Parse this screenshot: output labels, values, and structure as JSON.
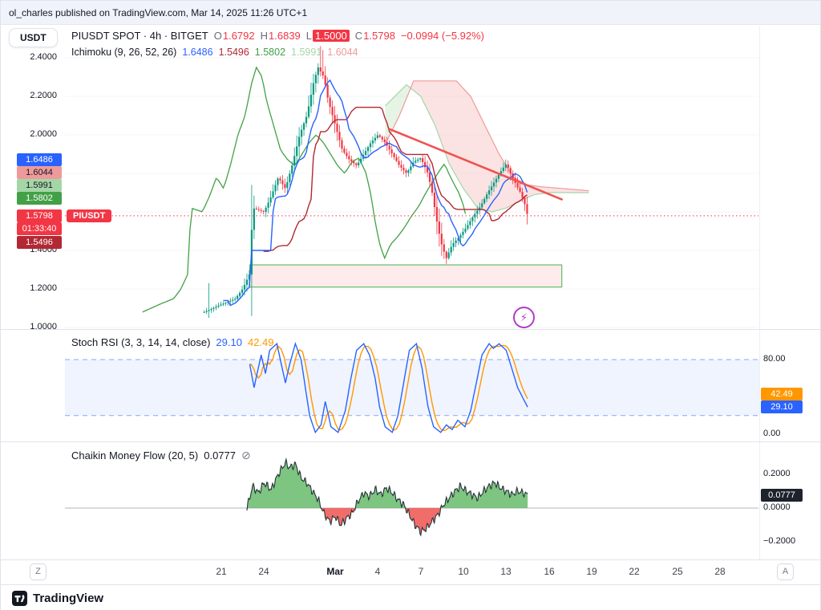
{
  "attribution": {
    "text": "ol_charles published on TradingView.com, Mar 14, 2025 11:26 UTC+1"
  },
  "toolbar": {
    "currency_label": "USDT"
  },
  "icons": {
    "boost": "⚡",
    "hide": "⊘"
  },
  "main_legend": {
    "title": "PIUSDT SPOT · 4h · BITGET",
    "o_label": "O",
    "o_value": "1.6792",
    "h_label": "H",
    "h_value": "1.6839",
    "l_label": "L",
    "l_value": "1.5000",
    "c_label": "C",
    "c_value": "1.5798",
    "change": "−0.0994 (−5.92%)",
    "ichimoku_label": "Ichimoku (9, 26, 52, 26)",
    "ichimoku_values": {
      "conversion": "1.6486",
      "base": "1.5496",
      "lagging": "1.5802",
      "lead1": "1.5991",
      "lead2": "1.6044"
    }
  },
  "price_axis": {
    "labels": [
      {
        "text": "2.4000"
      },
      {
        "text": "2.2000"
      },
      {
        "text": "2.0000"
      },
      {
        "text": "1.4000"
      },
      {
        "text": "1.2000"
      },
      {
        "text": "1.0000"
      }
    ],
    "badges": {
      "conversion": "1.6486",
      "lead2": "1.6044",
      "lead1": "1.5991",
      "lagging": "1.5802",
      "last_price": "1.5798",
      "symbol_tag": "PIUSDT",
      "countdown": "01:33:40",
      "base": "1.5496"
    }
  },
  "stoch_panel": {
    "legend_title": "Stoch RSI (3, 3, 14, 14, close)",
    "k_value": "29.10",
    "d_value": "42.49",
    "axis": {
      "upper": "80.00",
      "lower": "0.00",
      "d_badge": "42.49",
      "k_badge": "29.10"
    }
  },
  "cmf_panel": {
    "legend_title": "Chaikin Money Flow (20, 5)",
    "value": "0.0777",
    "axis": {
      "p02": "0.2000",
      "badge": "0.0777",
      "zero": "0.0000",
      "n02": "−0.2000"
    }
  },
  "time_axis": {
    "labels": [
      {
        "text": "21"
      },
      {
        "text": "24"
      },
      {
        "text": "Mar"
      },
      {
        "text": "4"
      },
      {
        "text": "7"
      },
      {
        "text": "10"
      },
      {
        "text": "13"
      },
      {
        "text": "16"
      },
      {
        "text": "19"
      },
      {
        "text": "22"
      },
      {
        "text": "25"
      },
      {
        "text": "28"
      }
    ],
    "left_button": "Z",
    "right_button": "A"
  },
  "footer": {
    "brand": "TradingView"
  },
  "colors": {
    "up": "#089981",
    "down": "#F23645",
    "conversion": "#2962FF",
    "base": "#B22833",
    "lagging": "#43A047",
    "lead1": "#A5D6A7",
    "lead2": "#EF9A9A",
    "stoch_k": "#2962FF",
    "stoch_d": "#FF9800",
    "cmf_pos": "#66BB6A",
    "cmf_neg": "#EF5350",
    "cmf_line": "#263238",
    "accent_red": "#F23645",
    "badge_dark": "#1E222D"
  },
  "chart_data": {
    "main": {
      "type": "candlestick",
      "symbol": "PIUSDT",
      "exchange": "BITGET",
      "interval": "4h",
      "title": "PIUSDT SPOT · 4h · BITGET",
      "ohlc_current": {
        "open": 1.6792,
        "high": 1.6839,
        "low": 1.5,
        "close": 1.5798,
        "change": -0.0994,
        "change_pct": -5.92
      },
      "ichimoku": {
        "params": [
          9,
          26,
          52,
          26
        ],
        "conversion": 1.6486,
        "base": 1.5496,
        "lagging": 1.5802,
        "lead1": 1.5991,
        "lead2": 1.6044
      },
      "ylim": [
        1.0,
        2.5
      ],
      "y_gridlines": [
        1.0,
        1.2,
        1.4,
        1.6,
        1.8,
        2.0,
        2.2,
        2.4
      ],
      "start_day": 19.8,
      "end_day": 42.5,
      "bars_per_day": 6,
      "close_path_anchors": [
        [
          19.8,
          1.08
        ],
        [
          20.4,
          1.1
        ],
        [
          21.0,
          1.12
        ],
        [
          22.0,
          1.15
        ],
        [
          22.5,
          1.2
        ],
        [
          23.0,
          1.28
        ],
        [
          23.2,
          1.62
        ],
        [
          24.0,
          1.6
        ],
        [
          24.5,
          1.68
        ],
        [
          25.0,
          1.78
        ],
        [
          25.5,
          1.72
        ],
        [
          26.0,
          1.85
        ],
        [
          26.5,
          2.0
        ],
        [
          27.0,
          2.1
        ],
        [
          27.5,
          2.28
        ],
        [
          27.8,
          2.35
        ],
        [
          28.2,
          2.3
        ],
        [
          28.5,
          2.18
        ],
        [
          29.0,
          2.05
        ],
        [
          29.5,
          1.92
        ],
        [
          30.0,
          1.87
        ],
        [
          30.5,
          1.84
        ],
        [
          31.0,
          1.9
        ],
        [
          31.5,
          1.96
        ],
        [
          32.0,
          2.0
        ],
        [
          32.5,
          1.96
        ],
        [
          33.0,
          1.9
        ],
        [
          33.5,
          1.84
        ],
        [
          34.0,
          1.8
        ],
        [
          34.5,
          1.86
        ],
        [
          35.0,
          1.88
        ],
        [
          35.5,
          1.8
        ],
        [
          35.8,
          1.7
        ],
        [
          36.2,
          1.52
        ],
        [
          36.5,
          1.42
        ],
        [
          36.8,
          1.36
        ],
        [
          37.2,
          1.43
        ],
        [
          37.7,
          1.47
        ],
        [
          38.2,
          1.52
        ],
        [
          38.7,
          1.58
        ],
        [
          39.2,
          1.63
        ],
        [
          39.7,
          1.7
        ],
        [
          40.2,
          1.76
        ],
        [
          40.7,
          1.82
        ],
        [
          41.0,
          1.85
        ],
        [
          41.3,
          1.8
        ],
        [
          41.7,
          1.74
        ],
        [
          42.0,
          1.7
        ],
        [
          42.3,
          1.64
        ],
        [
          42.5,
          1.5798
        ]
      ],
      "wick_spikes": [
        {
          "day": 20.2,
          "high": 1.23,
          "low": 1.05
        },
        {
          "day": 23.2,
          "high": 1.74,
          "low": 1.06
        },
        {
          "day": 27.9,
          "high": 2.46
        },
        {
          "day": 28.1,
          "high": 2.44
        },
        {
          "day": 36.8,
          "low": 1.33
        }
      ],
      "senkou_a_anchors": [
        [
          32.5,
          2.15
        ],
        [
          34,
          2.26
        ],
        [
          35,
          2.2
        ],
        [
          36,
          2.05
        ],
        [
          37,
          1.85
        ],
        [
          38,
          1.72
        ],
        [
          39,
          1.62
        ],
        [
          40,
          1.6
        ],
        [
          41,
          1.62
        ],
        [
          42,
          1.66
        ],
        [
          43,
          1.69
        ],
        [
          44,
          1.7
        ],
        [
          46.8,
          1.7
        ]
      ],
      "senkou_b_anchors": [
        [
          32.5,
          1.95
        ],
        [
          33.5,
          2.1
        ],
        [
          34.5,
          2.28
        ],
        [
          37.5,
          2.28
        ],
        [
          38.5,
          2.2
        ],
        [
          39.5,
          2.05
        ],
        [
          40.5,
          1.9
        ],
        [
          41.5,
          1.78
        ],
        [
          42.5,
          1.74
        ],
        [
          43.5,
          1.73
        ],
        [
          46.8,
          1.71
        ]
      ],
      "last_price": 1.5798,
      "countdown": "01:33:40",
      "trendline": {
        "from_day": 32.8,
        "from_price": 2.03,
        "to_day": 44.9,
        "to_price": 1.665
      },
      "support_zone": {
        "from_day": 23.0,
        "to_day": 44.9,
        "price_top": 1.325,
        "price_bottom": 1.21
      }
    },
    "stoch_rsi": {
      "type": "line",
      "title": "Stoch RSI (3, 3, 14, 14, close)",
      "params": [
        3,
        3,
        14,
        14,
        "close"
      ],
      "k_current": 29.1,
      "d_current": 42.49,
      "bands": [
        80,
        20
      ],
      "ylim": [
        0,
        100
      ],
      "k_anchors": [
        [
          23.0,
          75
        ],
        [
          23.3,
          50
        ],
        [
          23.8,
          85
        ],
        [
          24.1,
          65
        ],
        [
          24.4,
          90
        ],
        [
          24.9,
          97
        ],
        [
          25.5,
          55
        ],
        [
          25.8,
          75
        ],
        [
          26.2,
          97
        ],
        [
          26.6,
          80
        ],
        [
          27.2,
          20
        ],
        [
          27.6,
          2
        ],
        [
          28.0,
          10
        ],
        [
          28.3,
          35
        ],
        [
          28.7,
          8
        ],
        [
          29.2,
          2
        ],
        [
          29.7,
          25
        ],
        [
          30.1,
          60
        ],
        [
          30.5,
          90
        ],
        [
          31.0,
          97
        ],
        [
          31.4,
          85
        ],
        [
          31.8,
          60
        ],
        [
          32.1,
          30
        ],
        [
          32.5,
          8
        ],
        [
          33.0,
          2
        ],
        [
          33.4,
          20
        ],
        [
          33.8,
          55
        ],
        [
          34.2,
          90
        ],
        [
          34.7,
          97
        ],
        [
          35.1,
          70
        ],
        [
          35.5,
          30
        ],
        [
          35.9,
          8
        ],
        [
          36.4,
          2
        ],
        [
          36.8,
          10
        ],
        [
          37.2,
          5
        ],
        [
          37.6,
          15
        ],
        [
          38.1,
          8
        ],
        [
          38.5,
          25
        ],
        [
          38.9,
          55
        ],
        [
          39.3,
          85
        ],
        [
          39.8,
          97
        ],
        [
          40.1,
          92
        ],
        [
          40.5,
          97
        ],
        [
          41.0,
          90
        ],
        [
          41.4,
          70
        ],
        [
          41.8,
          50
        ],
        [
          42.3,
          35
        ],
        [
          42.5,
          29.1
        ]
      ]
    },
    "cmf": {
      "type": "area",
      "title": "Chaikin Money Flow (20, 5)",
      "params": [
        20,
        5
      ],
      "current": 0.0777,
      "ylim": [
        -0.2,
        0.2
      ],
      "anchors": [
        [
          22.8,
          0.0
        ],
        [
          23.2,
          0.13
        ],
        [
          23.6,
          0.09
        ],
        [
          24.0,
          0.15
        ],
        [
          24.5,
          0.11
        ],
        [
          25.0,
          0.2
        ],
        [
          25.5,
          0.27
        ],
        [
          25.8,
          0.24
        ],
        [
          26.2,
          0.26
        ],
        [
          26.6,
          0.18
        ],
        [
          27.0,
          0.15
        ],
        [
          27.4,
          0.1
        ],
        [
          27.8,
          0.05
        ],
        [
          28.2,
          -0.03
        ],
        [
          28.6,
          -0.08
        ],
        [
          29.0,
          -0.05
        ],
        [
          29.4,
          -0.1
        ],
        [
          29.8,
          -0.06
        ],
        [
          30.2,
          -0.03
        ],
        [
          30.6,
          0.04
        ],
        [
          31.0,
          0.09
        ],
        [
          31.4,
          0.07
        ],
        [
          31.8,
          0.11
        ],
        [
          32.2,
          0.08
        ],
        [
          32.6,
          0.12
        ],
        [
          33.0,
          0.09
        ],
        [
          33.4,
          0.05
        ],
        [
          33.8,
          0.02
        ],
        [
          34.2,
          -0.04
        ],
        [
          34.6,
          -0.1
        ],
        [
          35.0,
          -0.14
        ],
        [
          35.4,
          -0.12
        ],
        [
          35.8,
          -0.08
        ],
        [
          36.2,
          -0.04
        ],
        [
          36.6,
          0.02
        ],
        [
          37.0,
          0.06
        ],
        [
          37.4,
          0.1
        ],
        [
          37.8,
          0.13
        ],
        [
          38.2,
          0.1
        ],
        [
          38.6,
          0.08
        ],
        [
          39.0,
          0.06
        ],
        [
          39.4,
          0.1
        ],
        [
          39.8,
          0.13
        ],
        [
          40.2,
          0.15
        ],
        [
          40.6,
          0.12
        ],
        [
          41.0,
          0.1
        ],
        [
          41.4,
          0.08
        ],
        [
          41.8,
          0.1
        ],
        [
          42.2,
          0.09
        ],
        [
          42.5,
          0.0777
        ]
      ]
    }
  }
}
